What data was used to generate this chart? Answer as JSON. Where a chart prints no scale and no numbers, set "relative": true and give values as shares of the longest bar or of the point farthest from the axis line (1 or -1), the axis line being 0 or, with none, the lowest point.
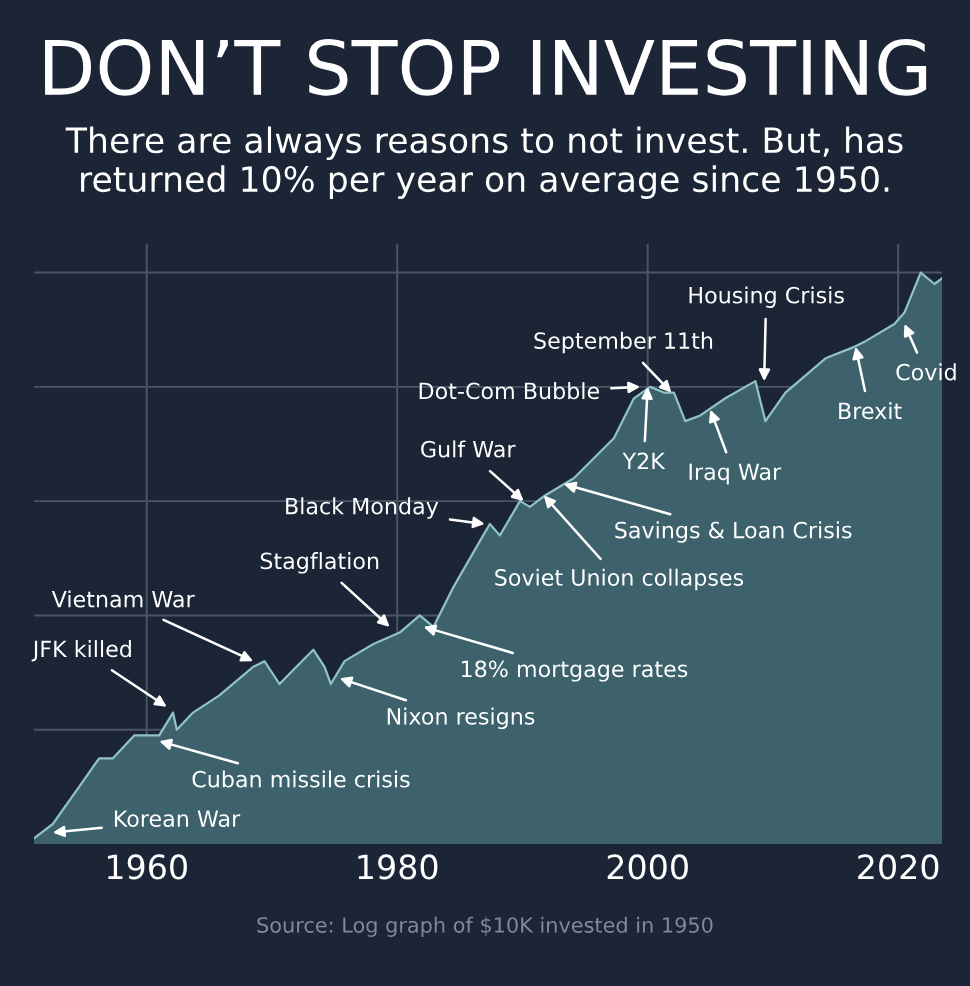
{
  "chart_data": {
    "type": "area",
    "title": "DON’T STOP INVESTING",
    "subtitle": "There are always reasons to not invest. But, has returned 10% per year on average since 1950.",
    "relative": true,
    "grid": true,
    "tick_labels": "x",
    "x": [
      1951,
      1952.5,
      1954.6,
      1956.2,
      1957.3,
      1959.0,
      1961.0,
      1962.1,
      1962.4,
      1963.7,
      1965.8,
      1968.5,
      1969.4,
      1970.6,
      1973.3,
      1974.2,
      1974.7,
      1975.8,
      1978.1,
      1980.2,
      1981.8,
      1982.9,
      1984.5,
      1986.6,
      1987.4,
      1988.2,
      1989.8,
      1990.6,
      1991.8,
      1994.1,
      1997.3,
      1998.9,
      2000.2,
      2001.3,
      2002.1,
      2003.0,
      2004.2,
      2006.2,
      2008.6,
      2009.4,
      2011.0,
      2014.2,
      2016.5,
      2017.4,
      2019.7,
      2020.5,
      2021.8,
      2022.9,
      2023.5
    ],
    "series": [
      {
        "color": "#3d626c",
        "values": [
          0.01,
          0.035,
          0.1,
          0.15,
          0.15,
          0.19,
          0.19,
          0.23,
          0.2,
          0.23,
          0.26,
          0.31,
          0.32,
          0.28,
          0.34,
          0.31,
          0.28,
          0.32,
          0.35,
          0.37,
          0.4,
          0.38,
          0.45,
          0.53,
          0.56,
          0.54,
          0.6,
          0.59,
          0.61,
          0.64,
          0.71,
          0.78,
          0.8,
          0.79,
          0.79,
          0.74,
          0.75,
          0.78,
          0.81,
          0.74,
          0.79,
          0.85,
          0.87,
          0.88,
          0.91,
          0.93,
          1,
          0.98,
          0.99
        ]
      }
    ],
    "xlim": [
      1951,
      2023.5
    ],
    "xticks": [
      1960,
      1980,
      2000,
      2020
    ],
    "annotations": [
      {
        "text": "Korean War",
        "x": 1952.5,
        "y": 0.02
      },
      {
        "text": "Cuban missile crisis",
        "x": 1961.0,
        "y": 0.18
      },
      {
        "text": "JFK killed",
        "x": 1961.6,
        "y": 0.24
      },
      {
        "text": "Vietnam War",
        "x": 1968.5,
        "y": 0.32
      },
      {
        "text": "Stagflation",
        "x": 1979.4,
        "y": 0.38
      },
      {
        "text": "Nixon resigns",
        "x": 1975.4,
        "y": 0.29
      },
      {
        "text": "Black Monday",
        "x": 1987.0,
        "y": 0.56
      },
      {
        "text": "18% mortgage rates",
        "x": 1982.1,
        "y": 0.38
      },
      {
        "text": "Gulf War",
        "x": 1990.1,
        "y": 0.6
      },
      {
        "text": "Dot-Com Bubble",
        "x": 1999.4,
        "y": 0.8
      },
      {
        "text": "September 11th",
        "x": 2001.9,
        "y": 0.79
      },
      {
        "text": "Soviet Union collapses",
        "x": 1991.7,
        "y": 0.61
      },
      {
        "text": "Savings & Loan Crisis",
        "x": 1993.3,
        "y": 0.63
      },
      {
        "text": "Y2K",
        "x": 2000.0,
        "y": 0.8
      },
      {
        "text": "Iraq War",
        "x": 2005.0,
        "y": 0.76
      },
      {
        "text": "Housing Crisis",
        "x": 2009.3,
        "y": 0.81
      },
      {
        "text": "Brexit",
        "x": 2016.6,
        "y": 0.87
      },
      {
        "text": "Covid",
        "x": 2020.5,
        "y": 0.91
      },
      "Source: Log graph of $10K invested in 1950"
    ]
  }
}
